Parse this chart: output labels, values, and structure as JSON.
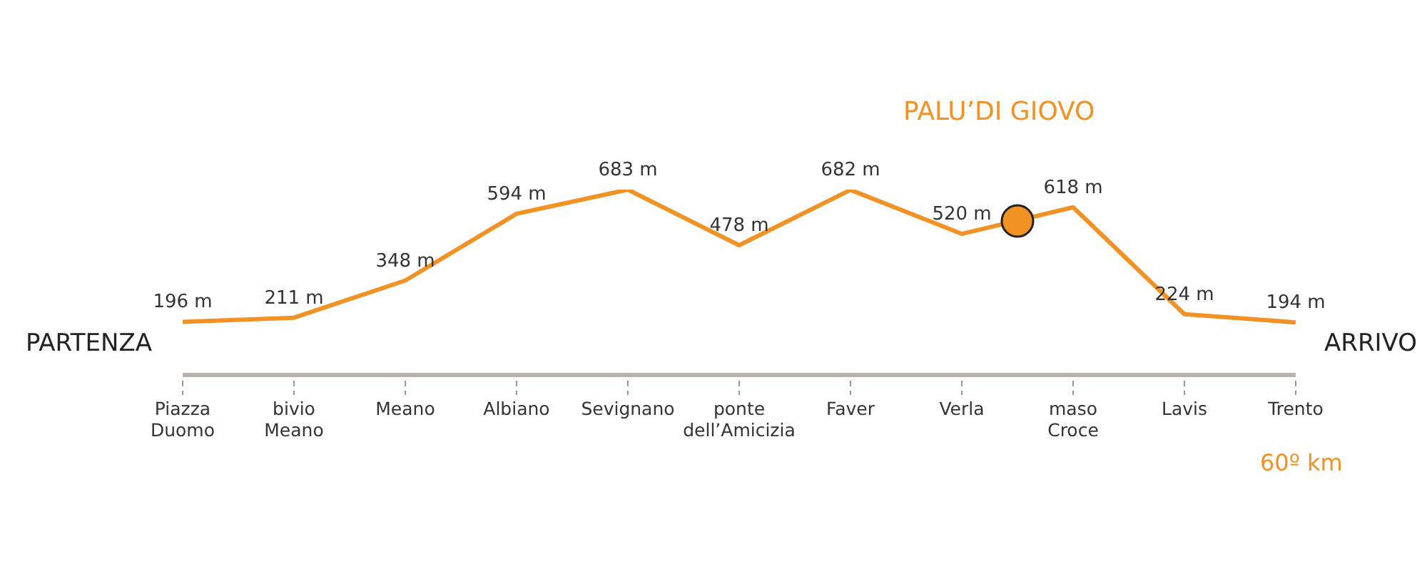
{
  "chart_data": {
    "type": "line",
    "categories": [
      "Piazza Duomo",
      "bivio Meano",
      "Meano",
      "Albiano",
      "Sevignano",
      "ponte dell’Amicizia",
      "Faver",
      "Verla",
      "maso Croce",
      "Lavis",
      "Trento"
    ],
    "values": [
      196,
      211,
      348,
      594,
      683,
      478,
      682,
      520,
      618,
      224,
      194
    ],
    "value_labels": [
      "196 m",
      "211 m",
      "348 m",
      "594 m",
      "683 m",
      "478 m",
      "682 m",
      "520 m",
      "618 m",
      "224 m",
      "194 m"
    ],
    "color": "#f39224",
    "marker": "none",
    "grid": false,
    "legend": false,
    "annotations": [
      "PARTENZA",
      "ARRIVO",
      "PALU’DI GIOVO",
      "60º km"
    ]
  }
}
